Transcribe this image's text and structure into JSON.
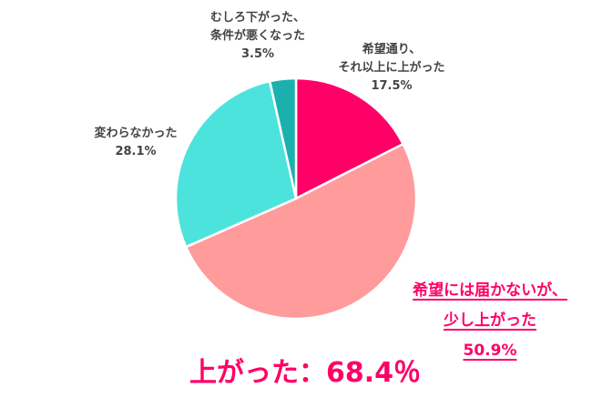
{
  "chart_data": {
    "type": "pie",
    "title": "",
    "start_angle": "12 o'clock",
    "direction": "clockwise",
    "slices": [
      {
        "label": "希望通り、それ以上に上がった",
        "value": 17.5,
        "color": "#ff0066"
      },
      {
        "label": "希望には届かないが、少し上がった",
        "value": 50.9,
        "color": "#ff9b9b"
      },
      {
        "label": "変わらなかった",
        "value": 28.1,
        "color": "#4de3dd"
      },
      {
        "label": "むしろ下がった、条件が悪くなった",
        "value": 3.5,
        "color": "#1ab0ae"
      }
    ],
    "annotation": "上がった：68.4%"
  },
  "labels": {
    "worse": {
      "line1": "むしろ下がった、",
      "line2": "条件が悪くなった",
      "pct": "3.5%"
    },
    "as_hoped": {
      "line1": "希望通り、",
      "line2": "それ以上に上がった",
      "pct": "17.5%"
    },
    "unchanged": {
      "line1": "変わらなかった",
      "pct": "28.1%"
    },
    "slightly_up": {
      "line1": "希望には届かないが、",
      "line2": "少し上がった",
      "pct": "50.9%"
    }
  },
  "total": {
    "text": "上がった：68.4％"
  },
  "colors": {
    "accent": "#ff0066",
    "label_text": "#444444"
  }
}
